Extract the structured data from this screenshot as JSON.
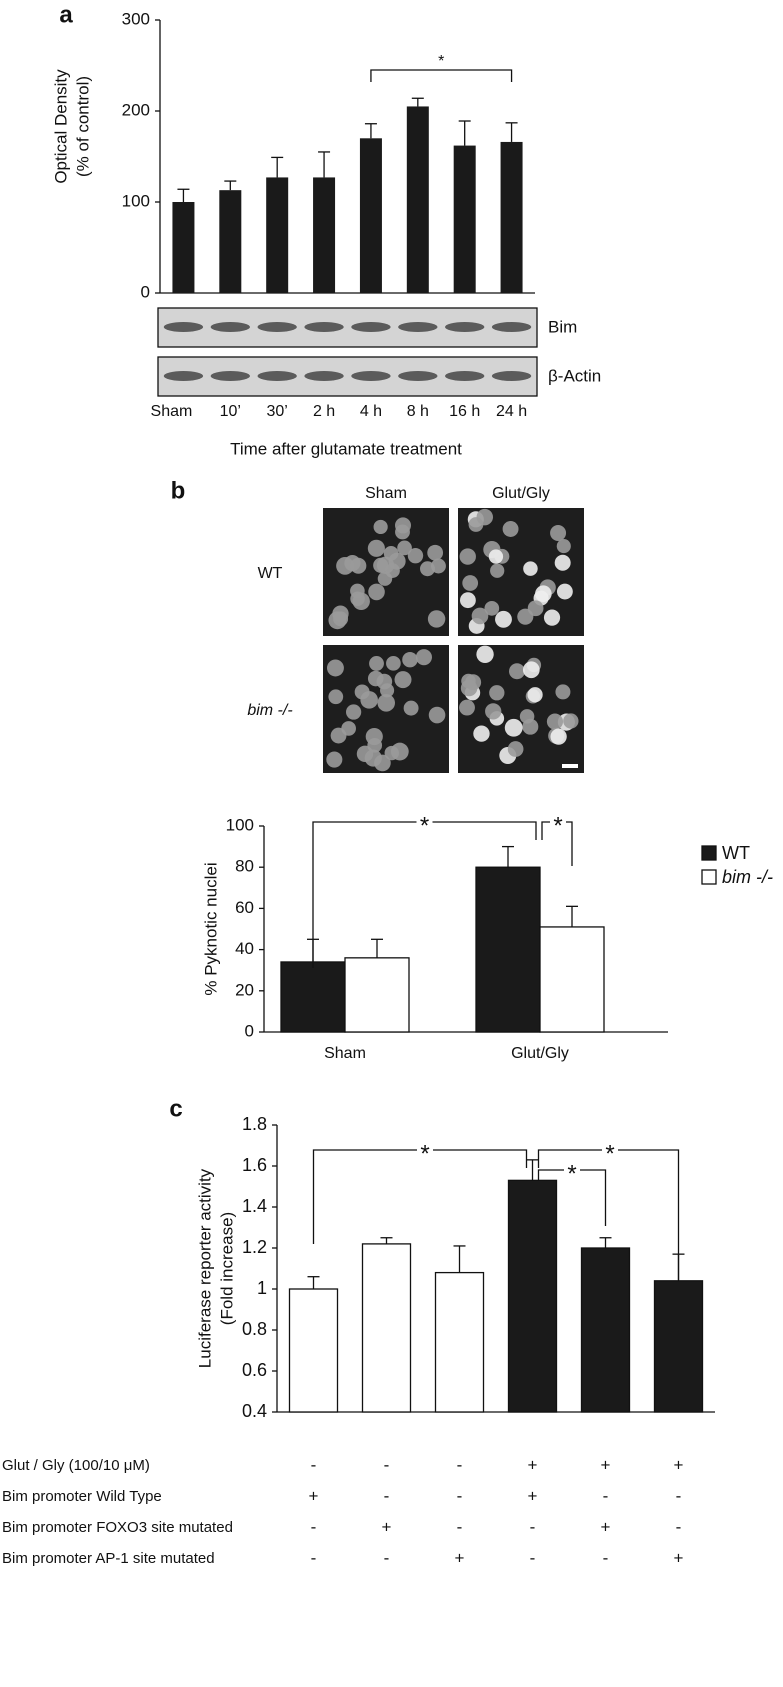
{
  "panel_labels": [
    "a",
    "b",
    "c"
  ],
  "chart_data": [
    {
      "type": "bar",
      "ylabel": [
        "Optical Density",
        "(% of control)"
      ],
      "xlabel": "Time after glutamate treatment",
      "categories": [
        "Sham",
        "10’",
        "30’",
        "2 h",
        "4 h",
        "8 h",
        "16 h",
        "24 h"
      ],
      "values": [
        100,
        113,
        127,
        127,
        170,
        205,
        162,
        166
      ],
      "errors": [
        14,
        10,
        22,
        28,
        16,
        9,
        27,
        21
      ],
      "color": "#1a1a1a",
      "ylim": [
        0,
        300
      ],
      "yticks": [
        0,
        100,
        200,
        300
      ],
      "annotations": [
        "*"
      ]
    },
    {
      "type": "grouped_bar",
      "ylabel": "% Pyknotic nuclei",
      "categories": [
        "Sham",
        "Glut/Gly"
      ],
      "series": [
        {
          "name": "WT",
          "color": "#1a1a1a",
          "values": [
            34,
            80
          ],
          "errors": [
            11,
            10
          ]
        },
        {
          "name": "bim -/-",
          "color": "#ffffff",
          "values": [
            36,
            51
          ],
          "errors": [
            9,
            10
          ]
        }
      ],
      "ylim": [
        0,
        100
      ],
      "yticks": [
        0,
        20,
        40,
        60,
        80,
        100
      ],
      "legend": "top-right",
      "annotations": [
        "*",
        "*"
      ]
    },
    {
      "type": "bar",
      "ylabel": [
        "Luciferase reporter activity",
        "(Fold increase)"
      ],
      "values": [
        1,
        1.22,
        1.08,
        1.53,
        1.2,
        1.04
      ],
      "errors": [
        0.06,
        0.03,
        0.13,
        0.1,
        0.05,
        0.13
      ],
      "colors": [
        "#ffffff",
        "#ffffff",
        "#ffffff",
        "#1a1a1a",
        "#1a1a1a",
        "#1a1a1a"
      ],
      "ylim": [
        0.4,
        1.8
      ],
      "yticks": [
        0.4,
        0.6,
        0.8,
        1,
        1.2,
        1.4,
        1.6,
        1.8
      ],
      "annotations": [
        "*",
        "*",
        "*"
      ]
    }
  ],
  "blot": {
    "rows": [
      "Bim",
      "β-Actin"
    ]
  },
  "micrographs": {
    "columns": [
      "Sham",
      "Glut/Gly"
    ],
    "rows": [
      "WT",
      "bim -/-"
    ]
  },
  "condition_table": {
    "rows": [
      {
        "label": "Glut / Gly (100/10 μM)",
        "cells": [
          "-",
          "-",
          "-",
          "+",
          "+",
          "+"
        ]
      },
      {
        "label": "Bim promoter Wild Type",
        "cells": [
          "+",
          "-",
          "-",
          "+",
          "-",
          "-"
        ]
      },
      {
        "label": "Bim promoter FOXO3 site mutated",
        "cells": [
          "-",
          "+",
          "-",
          "-",
          "+",
          "-"
        ]
      },
      {
        "label": "Bim promoter AP-1 site mutated",
        "cells": [
          "-",
          "-",
          "+",
          "-",
          "-",
          "+"
        ]
      }
    ]
  }
}
